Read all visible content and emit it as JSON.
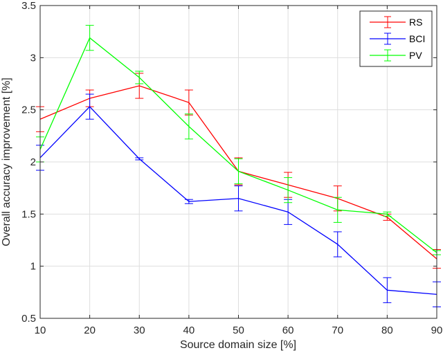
{
  "chart_data": {
    "type": "line",
    "title": "",
    "xlabel": "Source domain size [%]",
    "ylabel": "Overall accuracy improvement [%]",
    "xlim": [
      10,
      90
    ],
    "ylim": [
      0.5,
      3.5
    ],
    "grid": true,
    "legend_position": "top-right",
    "x": [
      10,
      20,
      30,
      40,
      50,
      60,
      70,
      80,
      90
    ],
    "x_ticks": [
      "10",
      "20",
      "30",
      "40",
      "50",
      "60",
      "70",
      "80",
      "90"
    ],
    "y_ticks": [
      "0.5",
      "1",
      "1.5",
      "2",
      "2.5",
      "3",
      "3.5"
    ],
    "series": [
      {
        "name": "RS",
        "color": "#ff0000",
        "values": [
          2.41,
          2.61,
          2.73,
          2.57,
          1.91,
          1.78,
          1.65,
          1.47,
          1.07
        ],
        "error": [
          0.12,
          0.08,
          0.12,
          0.12,
          0.13,
          0.12,
          0.12,
          0.03,
          0.09
        ]
      },
      {
        "name": "BCI",
        "color": "#0000ff",
        "values": [
          2.04,
          2.53,
          2.03,
          1.62,
          1.65,
          1.52,
          1.21,
          0.77,
          0.73
        ],
        "error": [
          0.12,
          0.12,
          0.01,
          0.02,
          0.12,
          0.12,
          0.12,
          0.12,
          0.12
        ]
      },
      {
        "name": "PV",
        "color": "#00ff00",
        "values": [
          2.12,
          3.19,
          2.81,
          2.34,
          1.91,
          1.73,
          1.54,
          1.5,
          1.13
        ],
        "error": [
          0.12,
          0.12,
          0.06,
          0.12,
          0.12,
          0.12,
          0.12,
          0.02,
          0.02
        ]
      }
    ]
  }
}
